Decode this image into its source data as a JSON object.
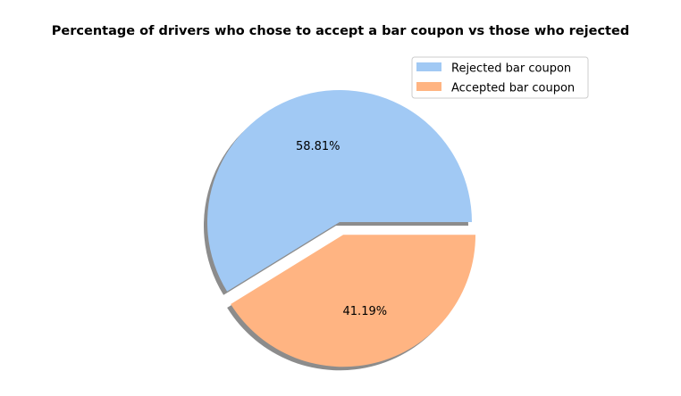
{
  "chart_data": {
    "type": "pie",
    "title": "Percentage of drivers who chose to accept a bar coupon vs those who rejected",
    "categories": [
      "Rejected bar coupon",
      "Accepted bar coupon"
    ],
    "values": [
      58.81,
      41.19
    ],
    "value_labels": [
      "58.81%",
      "41.19%"
    ],
    "colors": [
      "#a1c9f4",
      "#ffb482"
    ],
    "explode": [
      0,
      0.1
    ],
    "shadow": true,
    "start_angle_deg": 0,
    "direction": "counterclockwise",
    "legend": {
      "placement": "top-right",
      "entries": [
        "Rejected bar coupon",
        "Accepted bar coupon"
      ]
    }
  }
}
